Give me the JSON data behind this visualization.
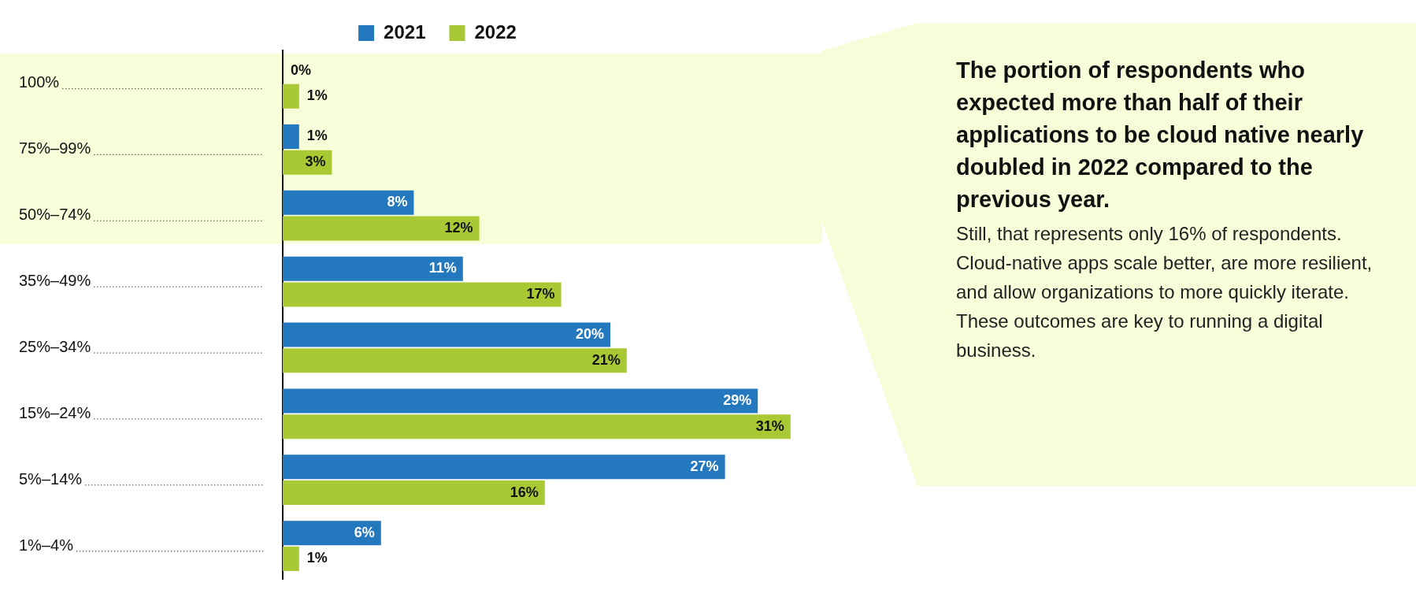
{
  "chart_data": {
    "type": "bar",
    "orientation": "horizontal",
    "categories": [
      "100%",
      "75%–99%",
      "50%–74%",
      "35%–49%",
      "25%–34%",
      "15%–24%",
      "5%–14%",
      "1%–4%"
    ],
    "series": [
      {
        "name": "2021",
        "color": "#2378be",
        "values": [
          0,
          1,
          8,
          11,
          20,
          29,
          27,
          6
        ],
        "value_labels": [
          "0%",
          "1%",
          "8%",
          "11%",
          "20%",
          "29%",
          "27%",
          "6%"
        ]
      },
      {
        "name": "2022",
        "color": "#a9c934",
        "values": [
          1,
          3,
          12,
          17,
          21,
          31,
          16,
          1
        ],
        "value_labels": [
          "1%",
          "3%",
          "12%",
          "17%",
          "21%",
          "31%",
          "16%",
          "1%"
        ]
      }
    ],
    "legend": "top",
    "bands": [
      {
        "axis": "y",
        "from": "100%",
        "to": "50%–74%",
        "color": "#f6fdd8"
      }
    ],
    "annotations": [
      "The portion of respondents who expected more than half of their applications to be cloud native nearly doubled in 2022 compared to the previous year.",
      "Still, that represents only 16% of respondents. Cloud-native apps scale better, are more resilient, and allow organizations to more quickly iterate. These outcomes are key to running a digital business."
    ]
  }
}
